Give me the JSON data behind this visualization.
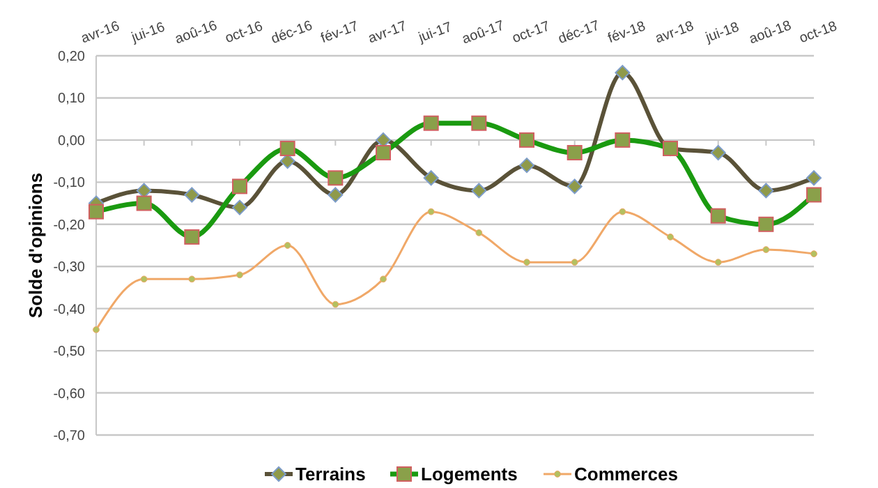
{
  "chart_data": {
    "type": "line",
    "ylabel": "Solde d'opinions",
    "categories": [
      "avr-16",
      "jui-16",
      "aoû-16",
      "oct-16",
      "déc-16",
      "fév-17",
      "avr-17",
      "jui-17",
      "aoû-17",
      "oct-17",
      "déc-17",
      "fév-18",
      "avr-18",
      "jui-18",
      "aoû-18",
      "oct-18"
    ],
    "series": [
      {
        "name": "Terrains",
        "color": "#5a5238",
        "marker": "diamond",
        "values": [
          -0.15,
          -0.12,
          -0.13,
          -0.16,
          -0.05,
          -0.13,
          0.0,
          -0.09,
          -0.12,
          -0.06,
          -0.11,
          0.16,
          -0.02,
          -0.03,
          -0.12,
          -0.09
        ]
      },
      {
        "name": "Logements",
        "color": "#1a9a10",
        "marker": "square",
        "values": [
          -0.17,
          -0.15,
          -0.23,
          -0.11,
          -0.02,
          -0.09,
          -0.03,
          0.04,
          0.04,
          0.0,
          -0.03,
          0.0,
          -0.02,
          -0.18,
          -0.2,
          -0.13
        ]
      },
      {
        "name": "Commerces",
        "color": "#f0a868",
        "marker": "circle",
        "values": [
          -0.45,
          -0.33,
          -0.33,
          -0.32,
          -0.25,
          -0.39,
          -0.33,
          -0.17,
          -0.22,
          -0.29,
          -0.29,
          -0.17,
          -0.23,
          -0.29,
          -0.26,
          -0.27
        ]
      }
    ],
    "ylim": [
      -0.7,
      0.2
    ],
    "yticks": [
      {
        "value": 0.2,
        "label": "0,20"
      },
      {
        "value": 0.1,
        "label": "0,10"
      },
      {
        "value": 0,
        "label": "0,00"
      },
      {
        "value": -0.1,
        "label": "-0,10"
      },
      {
        "value": -0.2,
        "label": "-0,20"
      },
      {
        "value": -0.3,
        "label": "-0,30"
      },
      {
        "value": -0.4,
        "label": "-0,40"
      },
      {
        "value": -0.5,
        "label": "-0,50"
      },
      {
        "value": -0.6,
        "label": "-0,60"
      },
      {
        "value": -0.7,
        "label": "-0,70"
      }
    ],
    "grid": "y",
    "legend": "bottom",
    "line_style": "solid"
  }
}
